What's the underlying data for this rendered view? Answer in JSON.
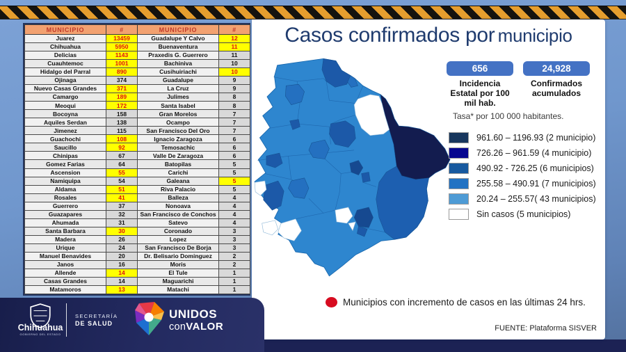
{
  "title": {
    "part1": "Casos confirmados por",
    "part2": "municipio"
  },
  "chart_data": {
    "type": "table",
    "title": "Casos confirmados por municipio",
    "columns": [
      "MUNICIPIO",
      "#",
      "MUNICIPIO",
      "#"
    ],
    "highlight_meaning": "Municipios con incremento de casos en las últimas 24 hrs.",
    "rows": [
      [
        "Juarez",
        13459,
        true,
        "Guadalupe Y Calvo",
        12,
        true
      ],
      [
        "Chihuahua",
        5950,
        true,
        "Buenaventura",
        11,
        true
      ],
      [
        "Delicias",
        1143,
        true,
        "Praxedis G. Guerrero",
        11,
        false
      ],
      [
        "Cuauhtemoc",
        1001,
        true,
        "Bachiniva",
        10,
        false
      ],
      [
        "Hidalgo del Parral",
        890,
        true,
        "Cusihuiriachi",
        10,
        true
      ],
      [
        "Ojinaga",
        374,
        false,
        "Guadalupe",
        9,
        false
      ],
      [
        "Nuevo Casas Grandes",
        371,
        true,
        "La Cruz",
        9,
        false
      ],
      [
        "Camargo",
        189,
        true,
        "Julimes",
        8,
        false
      ],
      [
        "Meoqui",
        172,
        true,
        "Santa Isabel",
        8,
        false
      ],
      [
        "Bocoyna",
        158,
        false,
        "Gran Morelos",
        7,
        false
      ],
      [
        "Aquiles Serdan",
        138,
        false,
        "Ocampo",
        7,
        false
      ],
      [
        "Jimenez",
        115,
        false,
        "San Francisco Del Oro",
        7,
        false
      ],
      [
        "Guachochi",
        108,
        true,
        "Ignacio Zaragoza",
        6,
        false
      ],
      [
        "Saucillo",
        92,
        true,
        "Temosachic",
        6,
        false
      ],
      [
        "Chinipas",
        67,
        false,
        "Valle De Zaragoza",
        6,
        false
      ],
      [
        "Gomez Farias",
        64,
        false,
        "Batopilas",
        5,
        false
      ],
      [
        "Ascension",
        55,
        true,
        "Carichi",
        5,
        false
      ],
      [
        "Namiquipa",
        54,
        false,
        "Galeana",
        5,
        true
      ],
      [
        "Aldama",
        51,
        true,
        "Riva Palacio",
        5,
        false
      ],
      [
        "Rosales",
        41,
        true,
        "Balleza",
        4,
        false
      ],
      [
        "Guerrero",
        37,
        false,
        "Nonoava",
        4,
        false
      ],
      [
        "Guazapares",
        32,
        false,
        "San Francisco de Conchos",
        4,
        false
      ],
      [
        "Ahumada",
        31,
        false,
        "Satevo",
        4,
        false
      ],
      [
        "Santa Barbara",
        30,
        true,
        "Coronado",
        3,
        false
      ],
      [
        "Madera",
        26,
        false,
        "Lopez",
        3,
        false
      ],
      [
        "Urique",
        24,
        false,
        "San Francisco De Borja",
        3,
        false
      ],
      [
        "Manuel Benavides",
        20,
        false,
        "Dr. Belisario Dominguez",
        2,
        false
      ],
      [
        "Janos",
        16,
        false,
        "Moris",
        2,
        false
      ],
      [
        "Allende",
        14,
        true,
        "El Tule",
        1,
        false
      ],
      [
        "Casas Grandes",
        14,
        false,
        "Maguarichi",
        1,
        false
      ],
      [
        "Matamoros",
        13,
        true,
        "Matachi",
        1,
        false
      ]
    ]
  },
  "stats": {
    "boxes": [
      {
        "value": "656",
        "label": "Incidencia\nEstatal por 100\nmil hab."
      },
      {
        "value": "24,928",
        "label": "Confirmados\nacumulados"
      }
    ],
    "note": "Tasa* por 100 000 habitantes."
  },
  "legend": {
    "items": [
      {
        "color": "#17365D",
        "label": "961.60 – 1196.93 (2 municipio)"
      },
      {
        "color": "#06068F",
        "label": "726.26 – 961.59 (4 municipio)"
      },
      {
        "color": "#17599F",
        "label": "490.92  - 726.25 (6 municipios)"
      },
      {
        "color": "#2272C3",
        "label": "255.58 – 490.91 (7 municipios)"
      },
      {
        "color": "#4E9BD5",
        "label": "20.24 – 255.57( 43 municipios)"
      },
      {
        "color": "#FFFFFF",
        "label": "Sin casos (5 municipios)"
      }
    ]
  },
  "map_note": {
    "text": "Municipios con incremento de casos en las últimas 24 hrs.",
    "dot_color": "#D70C20"
  },
  "fuente": "FUENTE:  Plataforma SISVER",
  "footer": {
    "state_name": "Chihuahua",
    "state_sub": "GOBIERNO DEL ESTADO",
    "secretaria_line1": "SECRETARÍA",
    "secretaria_line2": "DE SALUD",
    "campaign_line1": "UNIDOS",
    "campaign_line2_a": "con",
    "campaign_line2_b": "VALOR"
  },
  "palette": {
    "base": "#2E86CF",
    "navy": "#131C4F",
    "dark1": "#1C59A8",
    "dark2": "#2470C0",
    "dark3": "#164990",
    "se": "#1D5FB0",
    "white": "#FFFFFF",
    "accent_box": "#4472C4",
    "header_bg": "#F2A170",
    "header_text": "#C0392B",
    "highlight_bg": "#FFFF00",
    "highlight_text": "#E01010"
  }
}
